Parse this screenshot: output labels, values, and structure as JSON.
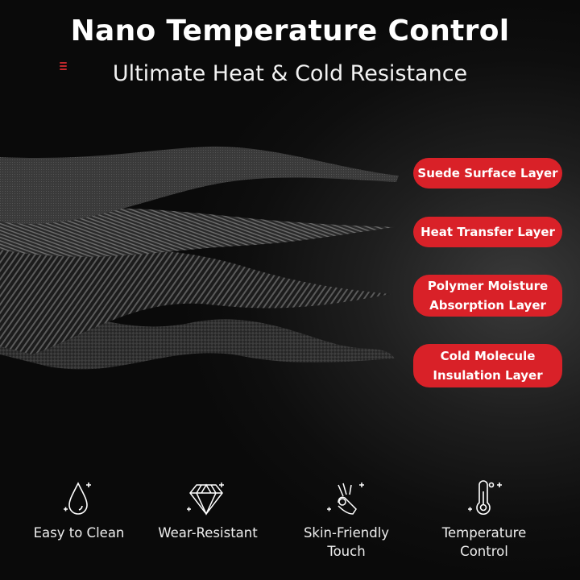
{
  "header": {
    "title": "Nano Temperature Control",
    "subtitle": "Ultimate Heat & Cold Resistance"
  },
  "colors": {
    "accent": "#d92128",
    "background": "#0c0c0c"
  },
  "layers": [
    {
      "label": "Suede Surface Layer"
    },
    {
      "label": "Heat Transfer Layer"
    },
    {
      "label": "Polymer Moisture Absorption Layer",
      "lines": [
        "Polymer Moisture",
        "Absorption Layer"
      ]
    },
    {
      "label": "Cold Molecule Insulation Layer",
      "lines": [
        "Cold Molecule",
        "Insulation Layer"
      ]
    }
  ],
  "features": [
    {
      "icon": "water-drop-icon",
      "lines": [
        "Easy to Clean"
      ]
    },
    {
      "icon": "diamond-icon",
      "lines": [
        "Wear-Resistant"
      ]
    },
    {
      "icon": "ok-hand-icon",
      "lines": [
        "Skin-Friendly",
        "Touch"
      ]
    },
    {
      "icon": "thermometer-icon",
      "lines": [
        "Temperature",
        "Control"
      ]
    }
  ]
}
